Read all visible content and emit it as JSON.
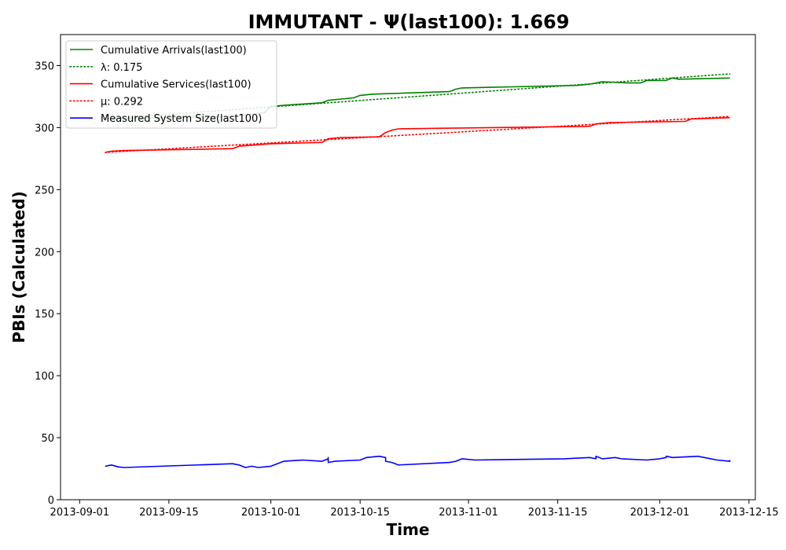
{
  "chart_data": {
    "type": "line",
    "title": "IMMUTANT -  Ψ(last100): 1.669",
    "xlabel": "Time",
    "ylabel": "PBIs (Calculated)",
    "xlim": [
      "2013-08-29",
      "2013-12-16"
    ],
    "ylim": [
      0,
      375
    ],
    "x_ticks": [
      "2013-09-01",
      "2013-09-15",
      "2013-10-01",
      "2013-10-15",
      "2013-11-01",
      "2013-11-15",
      "2013-12-01",
      "2013-12-15"
    ],
    "y_ticks": [
      0,
      50,
      100,
      150,
      200,
      250,
      300,
      350
    ],
    "grid": false,
    "legend_position": "top-left",
    "series": [
      {
        "name": "Cumulative Arrivals(last100)",
        "color": "#008000",
        "style": "solid",
        "points": [
          [
            "2013-09-05",
            307
          ],
          [
            "2013-09-25",
            309
          ],
          [
            "2013-09-30",
            312
          ],
          [
            "2013-10-01",
            317
          ],
          [
            "2013-10-03",
            318
          ],
          [
            "2013-10-09",
            320
          ],
          [
            "2013-10-10",
            322
          ],
          [
            "2013-10-14",
            324
          ],
          [
            "2013-10-15",
            326
          ],
          [
            "2013-10-17",
            327
          ],
          [
            "2013-10-29",
            329
          ],
          [
            "2013-10-30",
            331
          ],
          [
            "2013-10-31",
            332
          ],
          [
            "2013-11-18",
            334
          ],
          [
            "2013-11-20",
            335
          ],
          [
            "2013-11-21",
            336
          ],
          [
            "2013-11-22",
            337
          ],
          [
            "2013-11-26",
            336
          ],
          [
            "2013-11-28",
            336
          ],
          [
            "2013-11-29",
            338
          ],
          [
            "2013-12-02",
            338
          ],
          [
            "2013-12-03",
            340
          ],
          [
            "2013-12-04",
            339
          ],
          [
            "2013-12-12",
            340
          ]
        ]
      },
      {
        "name": "λ: 0.175",
        "color": "#008000",
        "style": "dotted",
        "points": [
          [
            "2013-09-05",
            307
          ],
          [
            "2013-12-12",
            343.3
          ]
        ]
      },
      {
        "name": "Cumulative Services(last100)",
        "color": "#ff0000",
        "style": "solid",
        "points": [
          [
            "2013-09-05",
            280
          ],
          [
            "2013-09-06",
            281
          ],
          [
            "2013-09-08",
            281.5
          ],
          [
            "2013-09-25",
            283
          ],
          [
            "2013-09-26",
            285
          ],
          [
            "2013-10-01",
            287
          ],
          [
            "2013-10-09",
            288
          ],
          [
            "2013-10-10",
            291
          ],
          [
            "2013-10-12",
            292
          ],
          [
            "2013-10-18",
            292.5
          ],
          [
            "2013-10-19",
            296
          ],
          [
            "2013-10-20",
            298
          ],
          [
            "2013-10-21",
            299
          ],
          [
            "2013-11-20",
            301
          ],
          [
            "2013-11-21",
            303
          ],
          [
            "2013-11-23",
            304
          ],
          [
            "2013-12-05",
            305
          ],
          [
            "2013-12-06",
            307
          ],
          [
            "2013-12-12",
            308
          ]
        ]
      },
      {
        "name": "μ: 0.292",
        "color": "#ff0000",
        "style": "dotted",
        "points": [
          [
            "2013-09-05",
            280
          ],
          [
            "2013-12-12",
            309
          ]
        ]
      },
      {
        "name": "Measured System Size(last100)",
        "color": "#0000ff",
        "style": "solid",
        "points": [
          [
            "2013-09-05",
            27
          ],
          [
            "2013-09-06",
            28
          ],
          [
            "2013-09-07",
            26.5
          ],
          [
            "2013-09-08",
            26
          ],
          [
            "2013-09-25",
            29
          ],
          [
            "2013-09-26",
            28
          ],
          [
            "2013-09-27",
            26
          ],
          [
            "2013-09-28",
            27
          ],
          [
            "2013-09-29",
            26
          ],
          [
            "2013-10-01",
            27
          ],
          [
            "2013-10-02",
            29
          ],
          [
            "2013-10-03",
            31
          ],
          [
            "2013-10-06",
            32
          ],
          [
            "2013-10-09",
            31
          ],
          [
            "2013-10-10",
            33
          ],
          [
            "2013-10-10",
            34
          ],
          [
            "2013-10-10",
            30
          ],
          [
            "2013-10-11",
            31
          ],
          [
            "2013-10-15",
            32
          ],
          [
            "2013-10-16",
            34
          ],
          [
            "2013-10-18",
            35
          ],
          [
            "2013-10-19",
            34
          ],
          [
            "2013-10-19",
            31
          ],
          [
            "2013-10-20",
            30
          ],
          [
            "2013-10-21",
            28
          ],
          [
            "2013-10-29",
            30
          ],
          [
            "2013-10-30",
            31
          ],
          [
            "2013-10-31",
            33
          ],
          [
            "2013-11-02",
            32
          ],
          [
            "2013-11-16",
            33
          ],
          [
            "2013-11-20",
            34
          ],
          [
            "2013-11-21",
            33
          ],
          [
            "2013-11-21",
            35
          ],
          [
            "2013-11-22",
            33
          ],
          [
            "2013-11-24",
            34
          ],
          [
            "2013-11-25",
            33
          ],
          [
            "2013-11-29",
            32
          ],
          [
            "2013-12-01",
            33
          ],
          [
            "2013-12-02",
            34
          ],
          [
            "2013-12-02",
            35
          ],
          [
            "2013-12-03",
            34
          ],
          [
            "2013-12-07",
            35
          ],
          [
            "2013-12-08",
            34
          ],
          [
            "2013-12-10",
            32
          ],
          [
            "2013-12-12",
            31
          ],
          [
            "2013-12-12",
            32
          ]
        ]
      }
    ]
  }
}
